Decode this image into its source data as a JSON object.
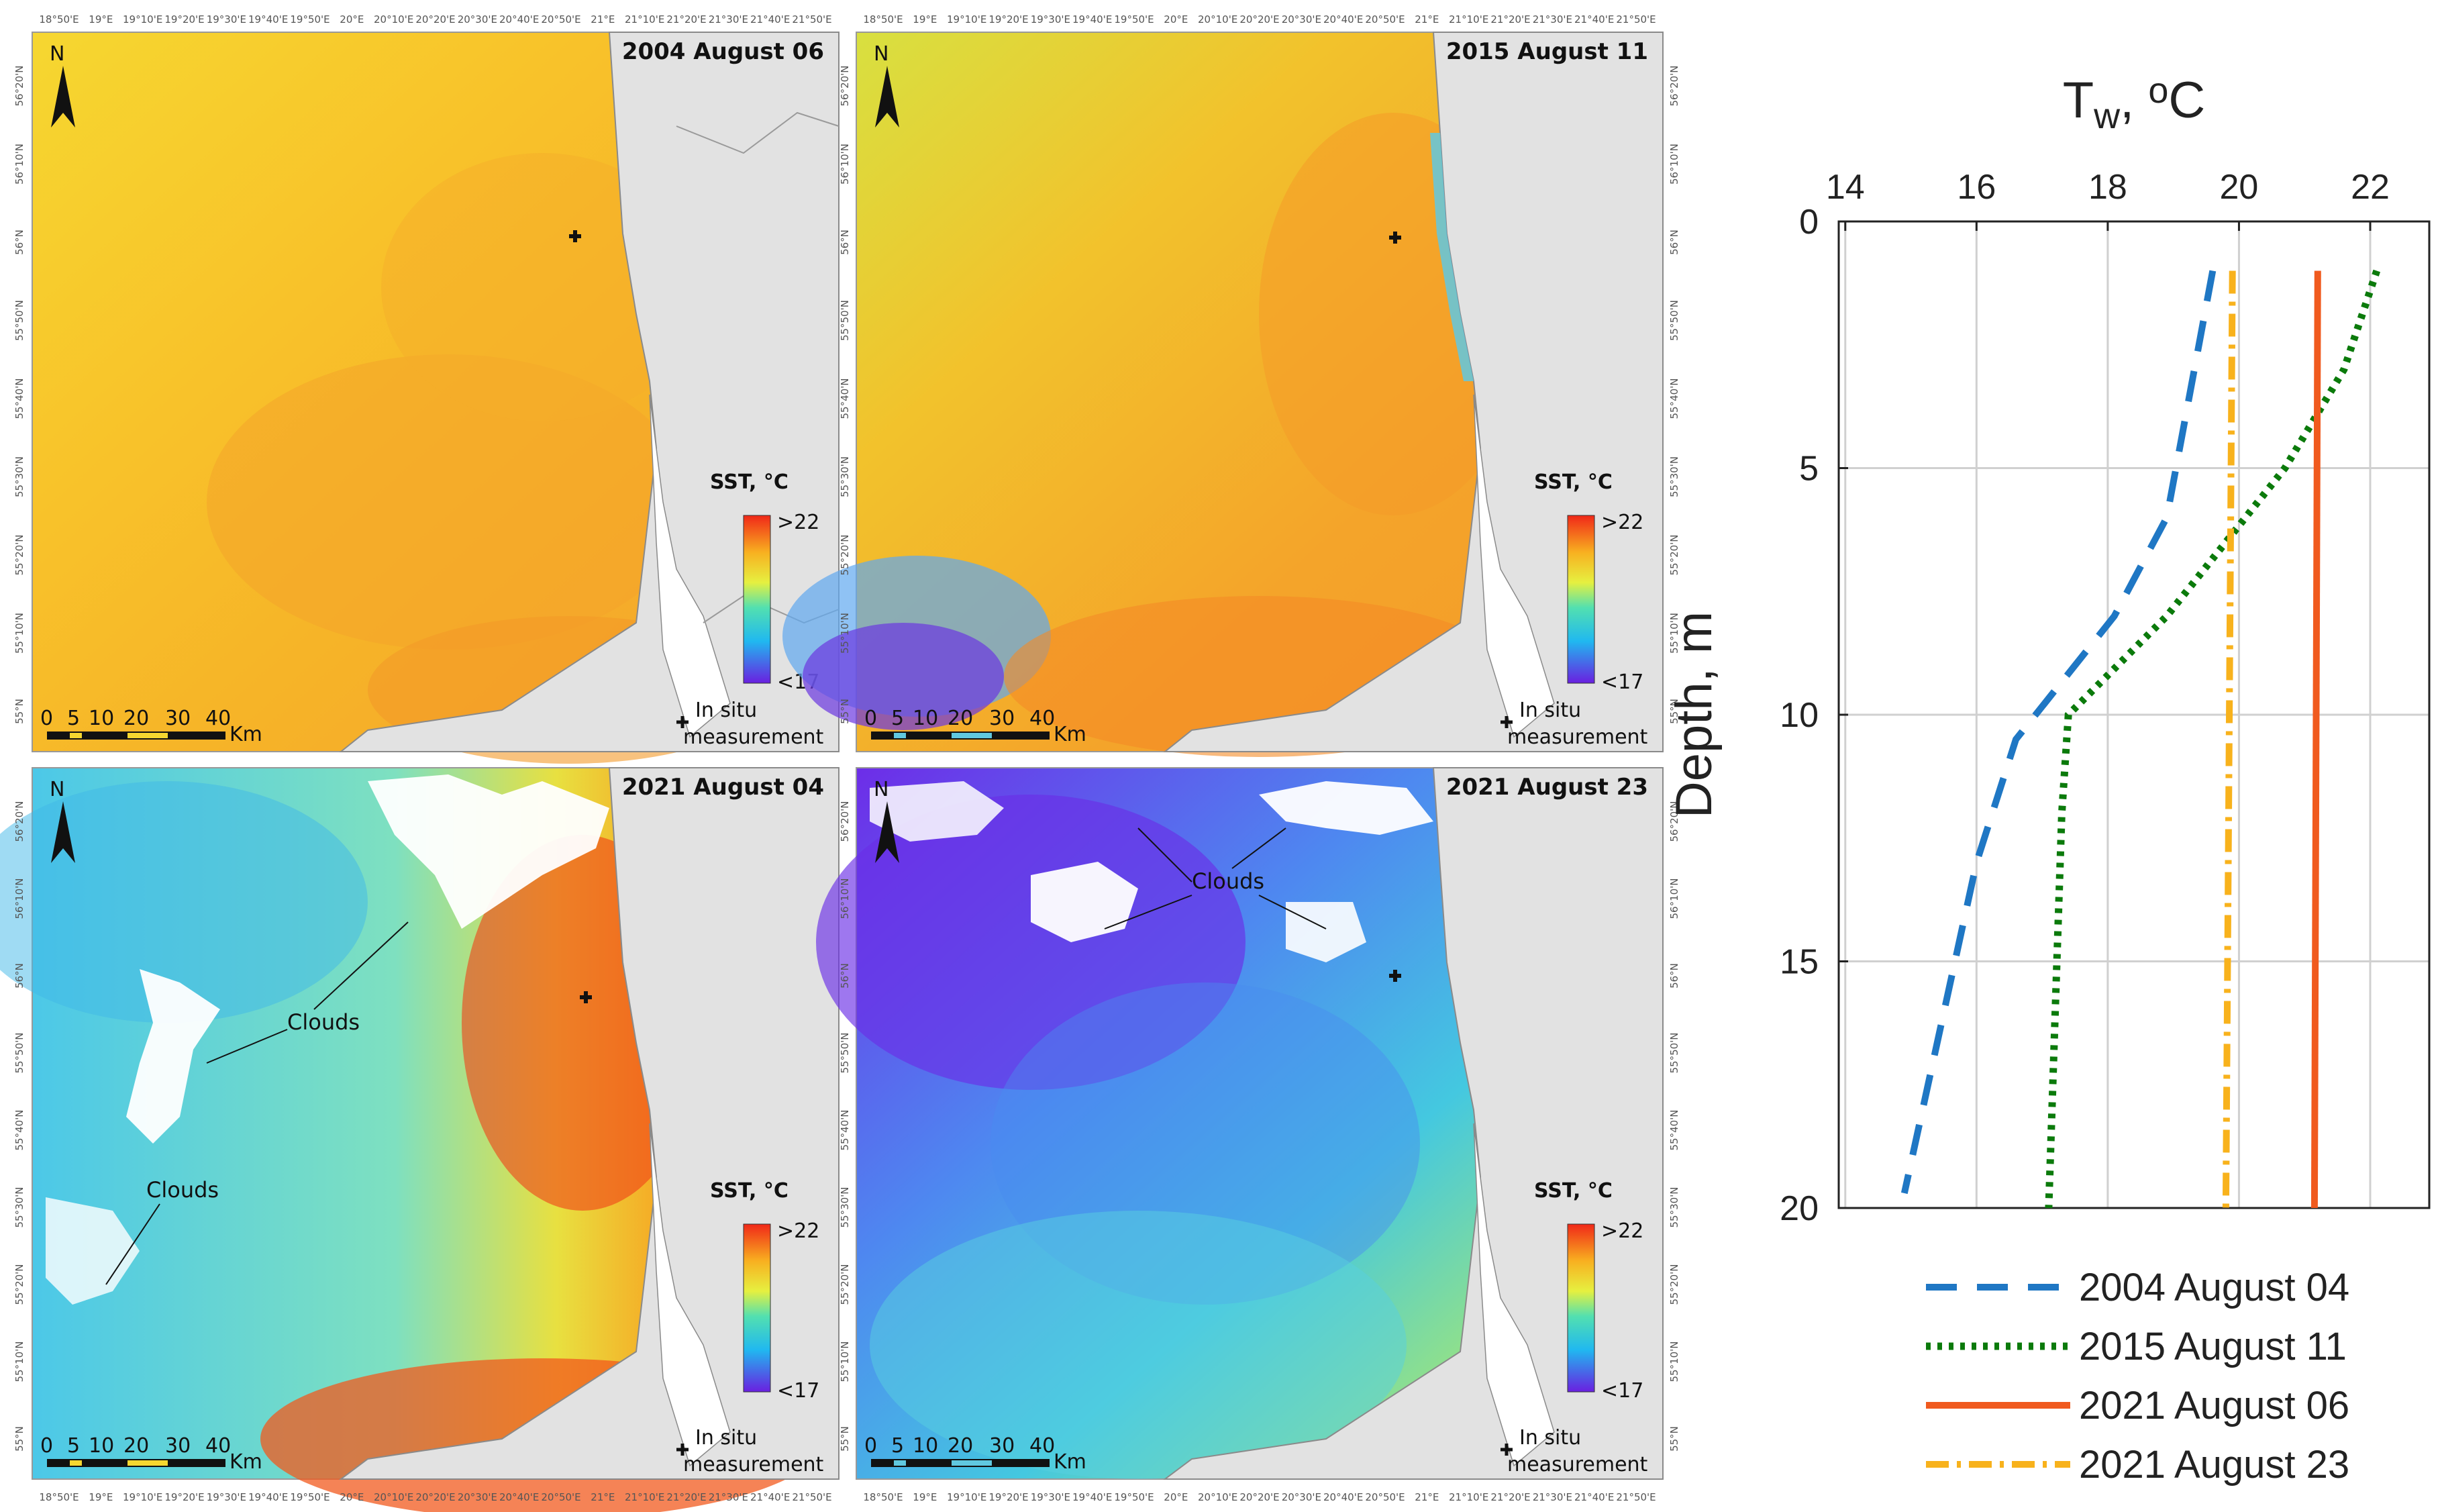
{
  "panels": [
    {
      "title": "2004 August 06",
      "theme": "warm"
    },
    {
      "title": "2015 August 11",
      "theme": "warm2"
    },
    {
      "title": "2021 August 04",
      "theme": "upwelling"
    },
    {
      "title": "2021 August 23",
      "theme": "cold"
    }
  ],
  "map_common": {
    "north": "N",
    "sst_title": "SST, °C",
    "sst_max": ">22",
    "sst_min": "<17",
    "in_situ_line1": "In situ",
    "in_situ_line2": "measurement",
    "scale_labels": [
      "0",
      "5",
      "10",
      "20",
      "30",
      "40"
    ],
    "scale_unit": "Km",
    "clouds": "Clouds",
    "lon_ticks": [
      "18°50'E",
      "19°E",
      "19°10'E",
      "19°20'E",
      "19°30'E",
      "19°40'E",
      "19°50'E",
      "20°E",
      "20°10'E",
      "20°20'E",
      "20°30'E",
      "20°40'E",
      "20°50'E",
      "21°E",
      "21°10'E",
      "21°20'E",
      "21°30'E",
      "21°40'E",
      "21°50'E"
    ],
    "lat_ticks": [
      "56°20'N",
      "56°10'N",
      "56°N",
      "55°50'N",
      "55°40'N",
      "55°30'N",
      "55°20'N",
      "55°10'N",
      "55°N"
    ]
  },
  "colors": {
    "land": "#e2e2e2",
    "coast": "#8a8a8a",
    "series_2004": "#1f77c4",
    "series_2015a": "#0b7a0b",
    "series_2021a": "#f05a1e",
    "series_2021b": "#f8b21c"
  },
  "chart_data": {
    "type": "line",
    "title": "",
    "xlabel_main": "T",
    "xlabel_sub": "w",
    "xlabel_rest": ", ",
    "xlabel_sup": "o",
    "xlabel_unit": "C",
    "ylabel": "Depth, m",
    "xlim": [
      13.9,
      22.9
    ],
    "ylim": [
      0,
      20
    ],
    "y_inverted": true,
    "x_ticks": [
      14,
      16,
      18,
      20,
      22
    ],
    "y_ticks": [
      0,
      5,
      10,
      15,
      20
    ],
    "grid": true,
    "legend_position": "below",
    "series": [
      {
        "name": "2004 August 04",
        "style": "dashed",
        "color": "#1f77c4",
        "points": [
          [
            19.6,
            1
          ],
          [
            18.9,
            6
          ],
          [
            18.1,
            8
          ],
          [
            16.6,
            10.5
          ],
          [
            16.0,
            13
          ],
          [
            14.9,
            19.7
          ]
        ]
      },
      {
        "name": "2015 August 11",
        "style": "dotted",
        "color": "#0b7a0b",
        "points": [
          [
            22.1,
            1
          ],
          [
            21.6,
            3
          ],
          [
            20.7,
            5
          ],
          [
            19.5,
            7
          ],
          [
            18.9,
            8
          ],
          [
            17.4,
            10
          ],
          [
            17.3,
            12
          ],
          [
            17.1,
            20
          ]
        ]
      },
      {
        "name": "2021 August 06",
        "style": "solid",
        "color": "#f05a1e",
        "points": [
          [
            21.2,
            1
          ],
          [
            21.15,
            20
          ]
        ]
      },
      {
        "name": "2021 August 23",
        "style": "dashdot",
        "color": "#f8b21c",
        "points": [
          [
            19.9,
            1
          ],
          [
            19.8,
            20
          ]
        ]
      }
    ]
  }
}
